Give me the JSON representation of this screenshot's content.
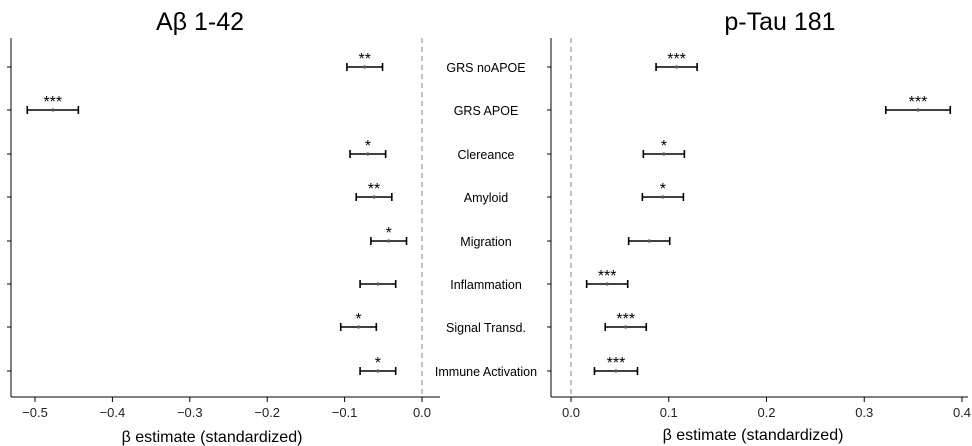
{
  "categories": [
    "GRS noAPOE",
    "GRS APOE",
    "Clereance",
    "Amyloid",
    "Migration",
    "Inflammation",
    "Signal Transd.",
    "Immune Activation"
  ],
  "chart_data": [
    {
      "type": "forest",
      "title": "Aβ 1-42",
      "xlabel": "β estimate (standardized)",
      "xlim": [
        -0.535,
        0.025
      ],
      "xticks": [
        -0.5,
        -0.4,
        -0.3,
        -0.2,
        -0.1,
        0.0
      ],
      "xtick_labels": [
        "−0.5",
        "−0.4",
        "−0.3",
        "−0.2",
        "−0.1",
        "0.0"
      ],
      "reference_line": 0,
      "points": [
        {
          "category": "GRS noAPOE",
          "estimate": -0.074,
          "ci_low": -0.097,
          "ci_high": -0.051,
          "sig": "**"
        },
        {
          "category": "GRS APOE",
          "estimate": -0.477,
          "ci_low": -0.51,
          "ci_high": -0.444,
          "sig": "***"
        },
        {
          "category": "Clereance",
          "estimate": -0.07,
          "ci_low": -0.093,
          "ci_high": -0.047,
          "sig": "*"
        },
        {
          "category": "Amyloid",
          "estimate": -0.062,
          "ci_low": -0.085,
          "ci_high": -0.039,
          "sig": "**"
        },
        {
          "category": "Migration",
          "estimate": -0.043,
          "ci_low": -0.066,
          "ci_high": -0.02,
          "sig": "*"
        },
        {
          "category": "Inflammation",
          "estimate": -0.057,
          "ci_low": -0.08,
          "ci_high": -0.034,
          "sig": ""
        },
        {
          "category": "Signal Transd.",
          "estimate": -0.082,
          "ci_low": -0.105,
          "ci_high": -0.059,
          "sig": "*"
        },
        {
          "category": "Immune Activation",
          "estimate": -0.057,
          "ci_low": -0.08,
          "ci_high": -0.034,
          "sig": "*"
        }
      ]
    },
    {
      "type": "forest",
      "title": "p-Tau 181",
      "xlabel": "β estimate (standardized)",
      "xlim": [
        -0.02,
        0.405
      ],
      "xticks": [
        0.0,
        0.1,
        0.2,
        0.3,
        0.4
      ],
      "xtick_labels": [
        "0.0",
        "0.1",
        "0.2",
        "0.3",
        "0.4"
      ],
      "reference_line": 0,
      "points": [
        {
          "category": "GRS noAPOE",
          "estimate": 0.108,
          "ci_low": 0.087,
          "ci_high": 0.129,
          "sig": "***"
        },
        {
          "category": "GRS APOE",
          "estimate": 0.355,
          "ci_low": 0.322,
          "ci_high": 0.388,
          "sig": "***"
        },
        {
          "category": "Clereance",
          "estimate": 0.095,
          "ci_low": 0.074,
          "ci_high": 0.116,
          "sig": "*"
        },
        {
          "category": "Amyloid",
          "estimate": 0.094,
          "ci_low": 0.073,
          "ci_high": 0.115,
          "sig": "*"
        },
        {
          "category": "Migration",
          "estimate": 0.08,
          "ci_low": 0.059,
          "ci_high": 0.101,
          "sig": ""
        },
        {
          "category": "Inflammation",
          "estimate": 0.037,
          "ci_low": 0.016,
          "ci_high": 0.058,
          "sig": "***"
        },
        {
          "category": "Signal Transd.",
          "estimate": 0.056,
          "ci_low": 0.035,
          "ci_high": 0.077,
          "sig": "***"
        },
        {
          "category": "Immune Activation",
          "estimate": 0.046,
          "ci_low": 0.024,
          "ci_high": 0.068,
          "sig": "***"
        }
      ]
    }
  ]
}
